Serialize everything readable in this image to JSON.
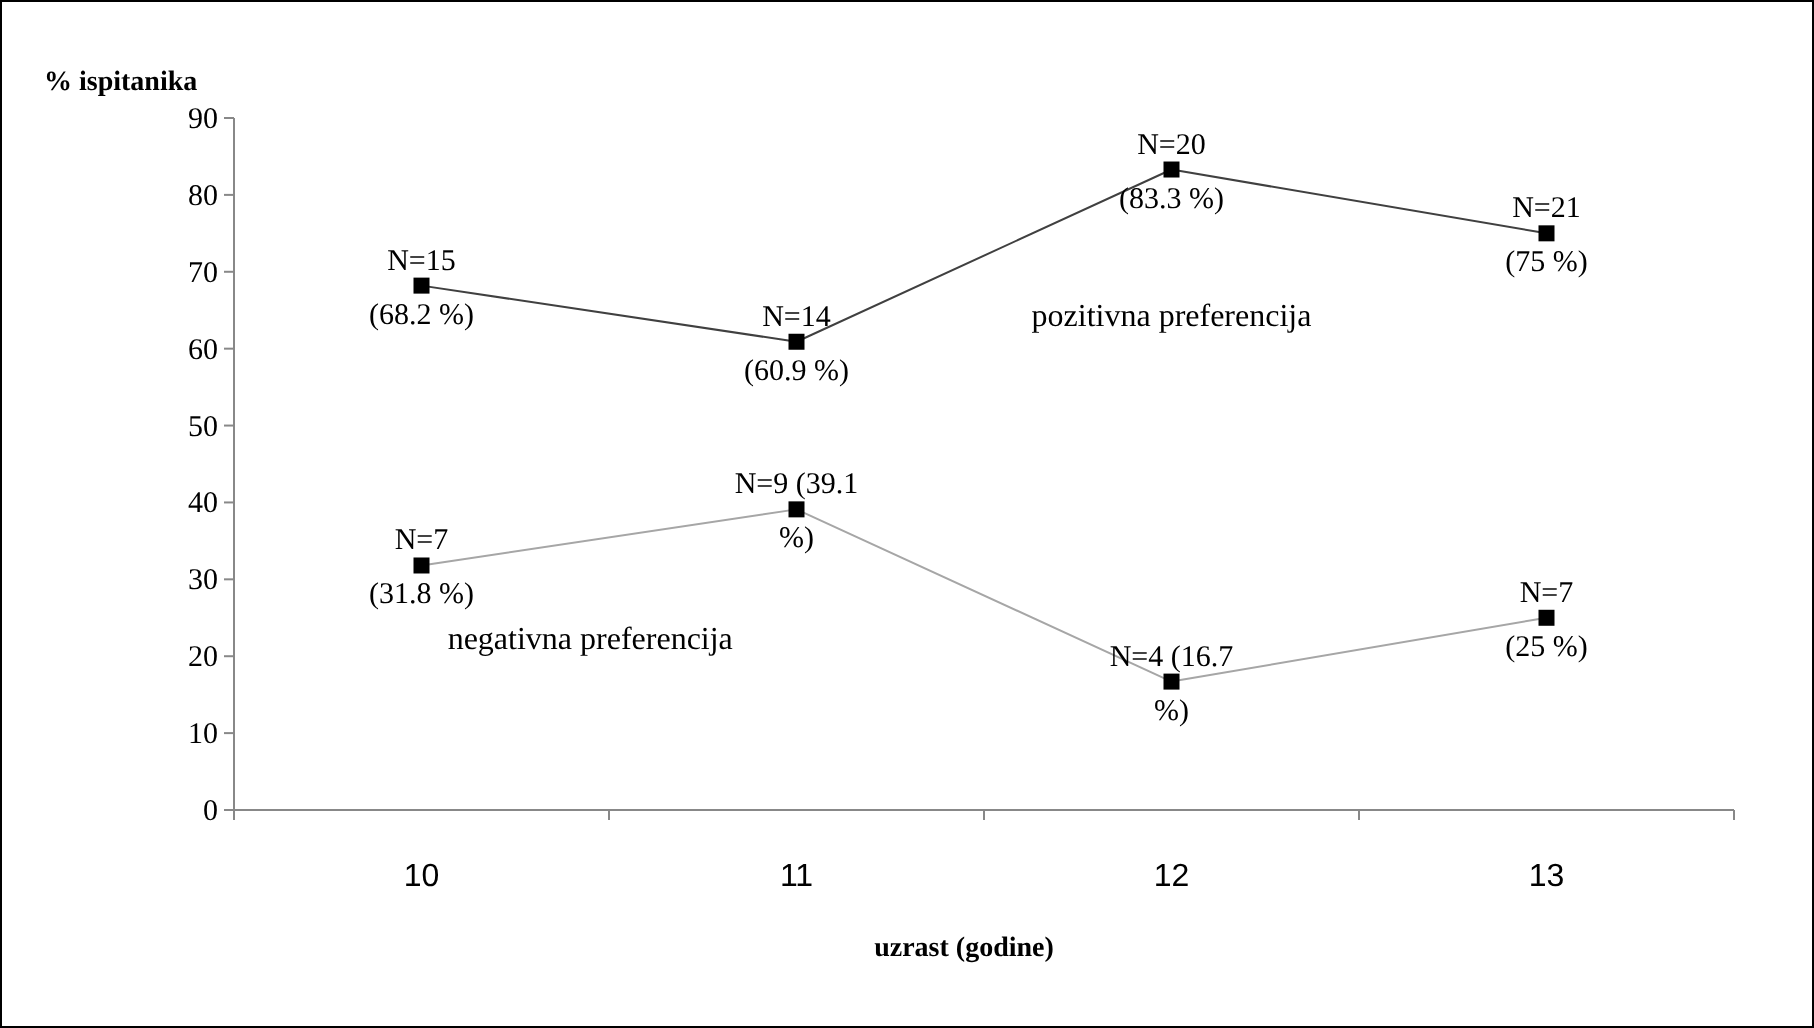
{
  "chart_data": {
    "type": "line",
    "xlabel": "uzrast (godine)",
    "ylabel": "% ispitanika",
    "categories": [
      "10",
      "11",
      "12",
      "13"
    ],
    "ylim": [
      0,
      90
    ],
    "yticks": [
      0,
      10,
      20,
      30,
      40,
      50,
      60,
      70,
      80,
      90
    ],
    "grid": false,
    "legend": false,
    "marker": "square",
    "line_style": "solid",
    "series": [
      {
        "name": "pozitivna preferencija",
        "color": "#404040",
        "values": [
          68.2,
          60.9,
          83.3,
          75
        ],
        "value_labels": [
          "N=15\n(68.2 %)",
          "N=14\n(60.9 %)",
          "N=20\n(83.3 %)",
          "N=21\n(75 %)"
        ]
      },
      {
        "name": "negativna preferencija",
        "color": "#a6a6a6",
        "values": [
          31.8,
          39.1,
          16.7,
          25
        ],
        "value_labels": [
          "N=7\n(31.8 %)",
          "N=9 (39.1\n%)",
          "N=4  (16.7\n%)",
          "N=7\n(25 %)"
        ]
      }
    ]
  }
}
